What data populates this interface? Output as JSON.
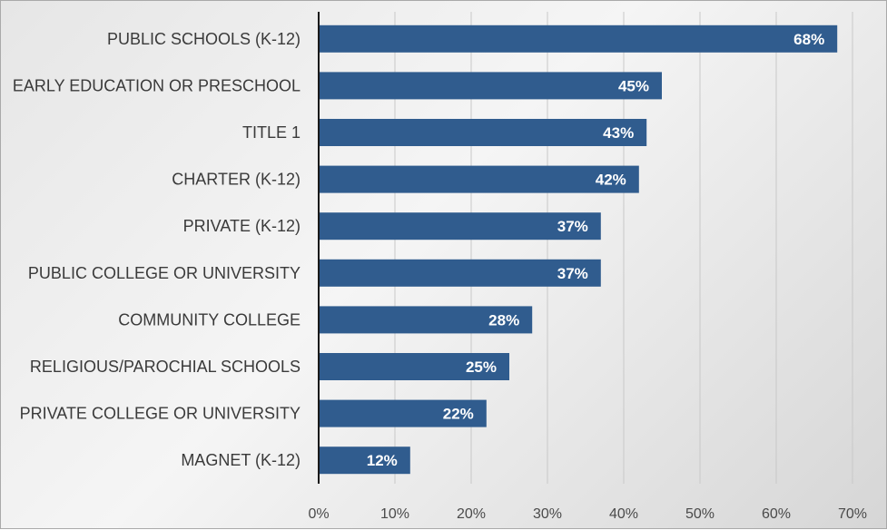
{
  "chart_data": {
    "type": "bar",
    "orientation": "horizontal",
    "categories": [
      "PUBLIC SCHOOLS (K-12)",
      "EARLY EDUCATION OR PRESCHOOL",
      "TITLE 1",
      "CHARTER (K-12)",
      "PRIVATE (K-12)",
      "PUBLIC COLLEGE OR UNIVERSITY",
      "COMMUNITY COLLEGE",
      "RELIGIOUS/PAROCHIAL SCHOOLS",
      "PRIVATE COLLEGE OR UNIVERSITY",
      "MAGNET (K-12)"
    ],
    "values": [
      68,
      45,
      43,
      42,
      37,
      37,
      28,
      25,
      22,
      12
    ],
    "data_labels": [
      "68%",
      "45%",
      "43%",
      "42%",
      "37%",
      "37%",
      "28%",
      "25%",
      "22%",
      "12%"
    ],
    "xlim": [
      0,
      70
    ],
    "x_ticks": [
      "0%",
      "10%",
      "20%",
      "30%",
      "40%",
      "50%",
      "60%",
      "70%"
    ],
    "grid": true,
    "bar_color": "#305c8e",
    "title": "",
    "xlabel": "",
    "ylabel": ""
  }
}
